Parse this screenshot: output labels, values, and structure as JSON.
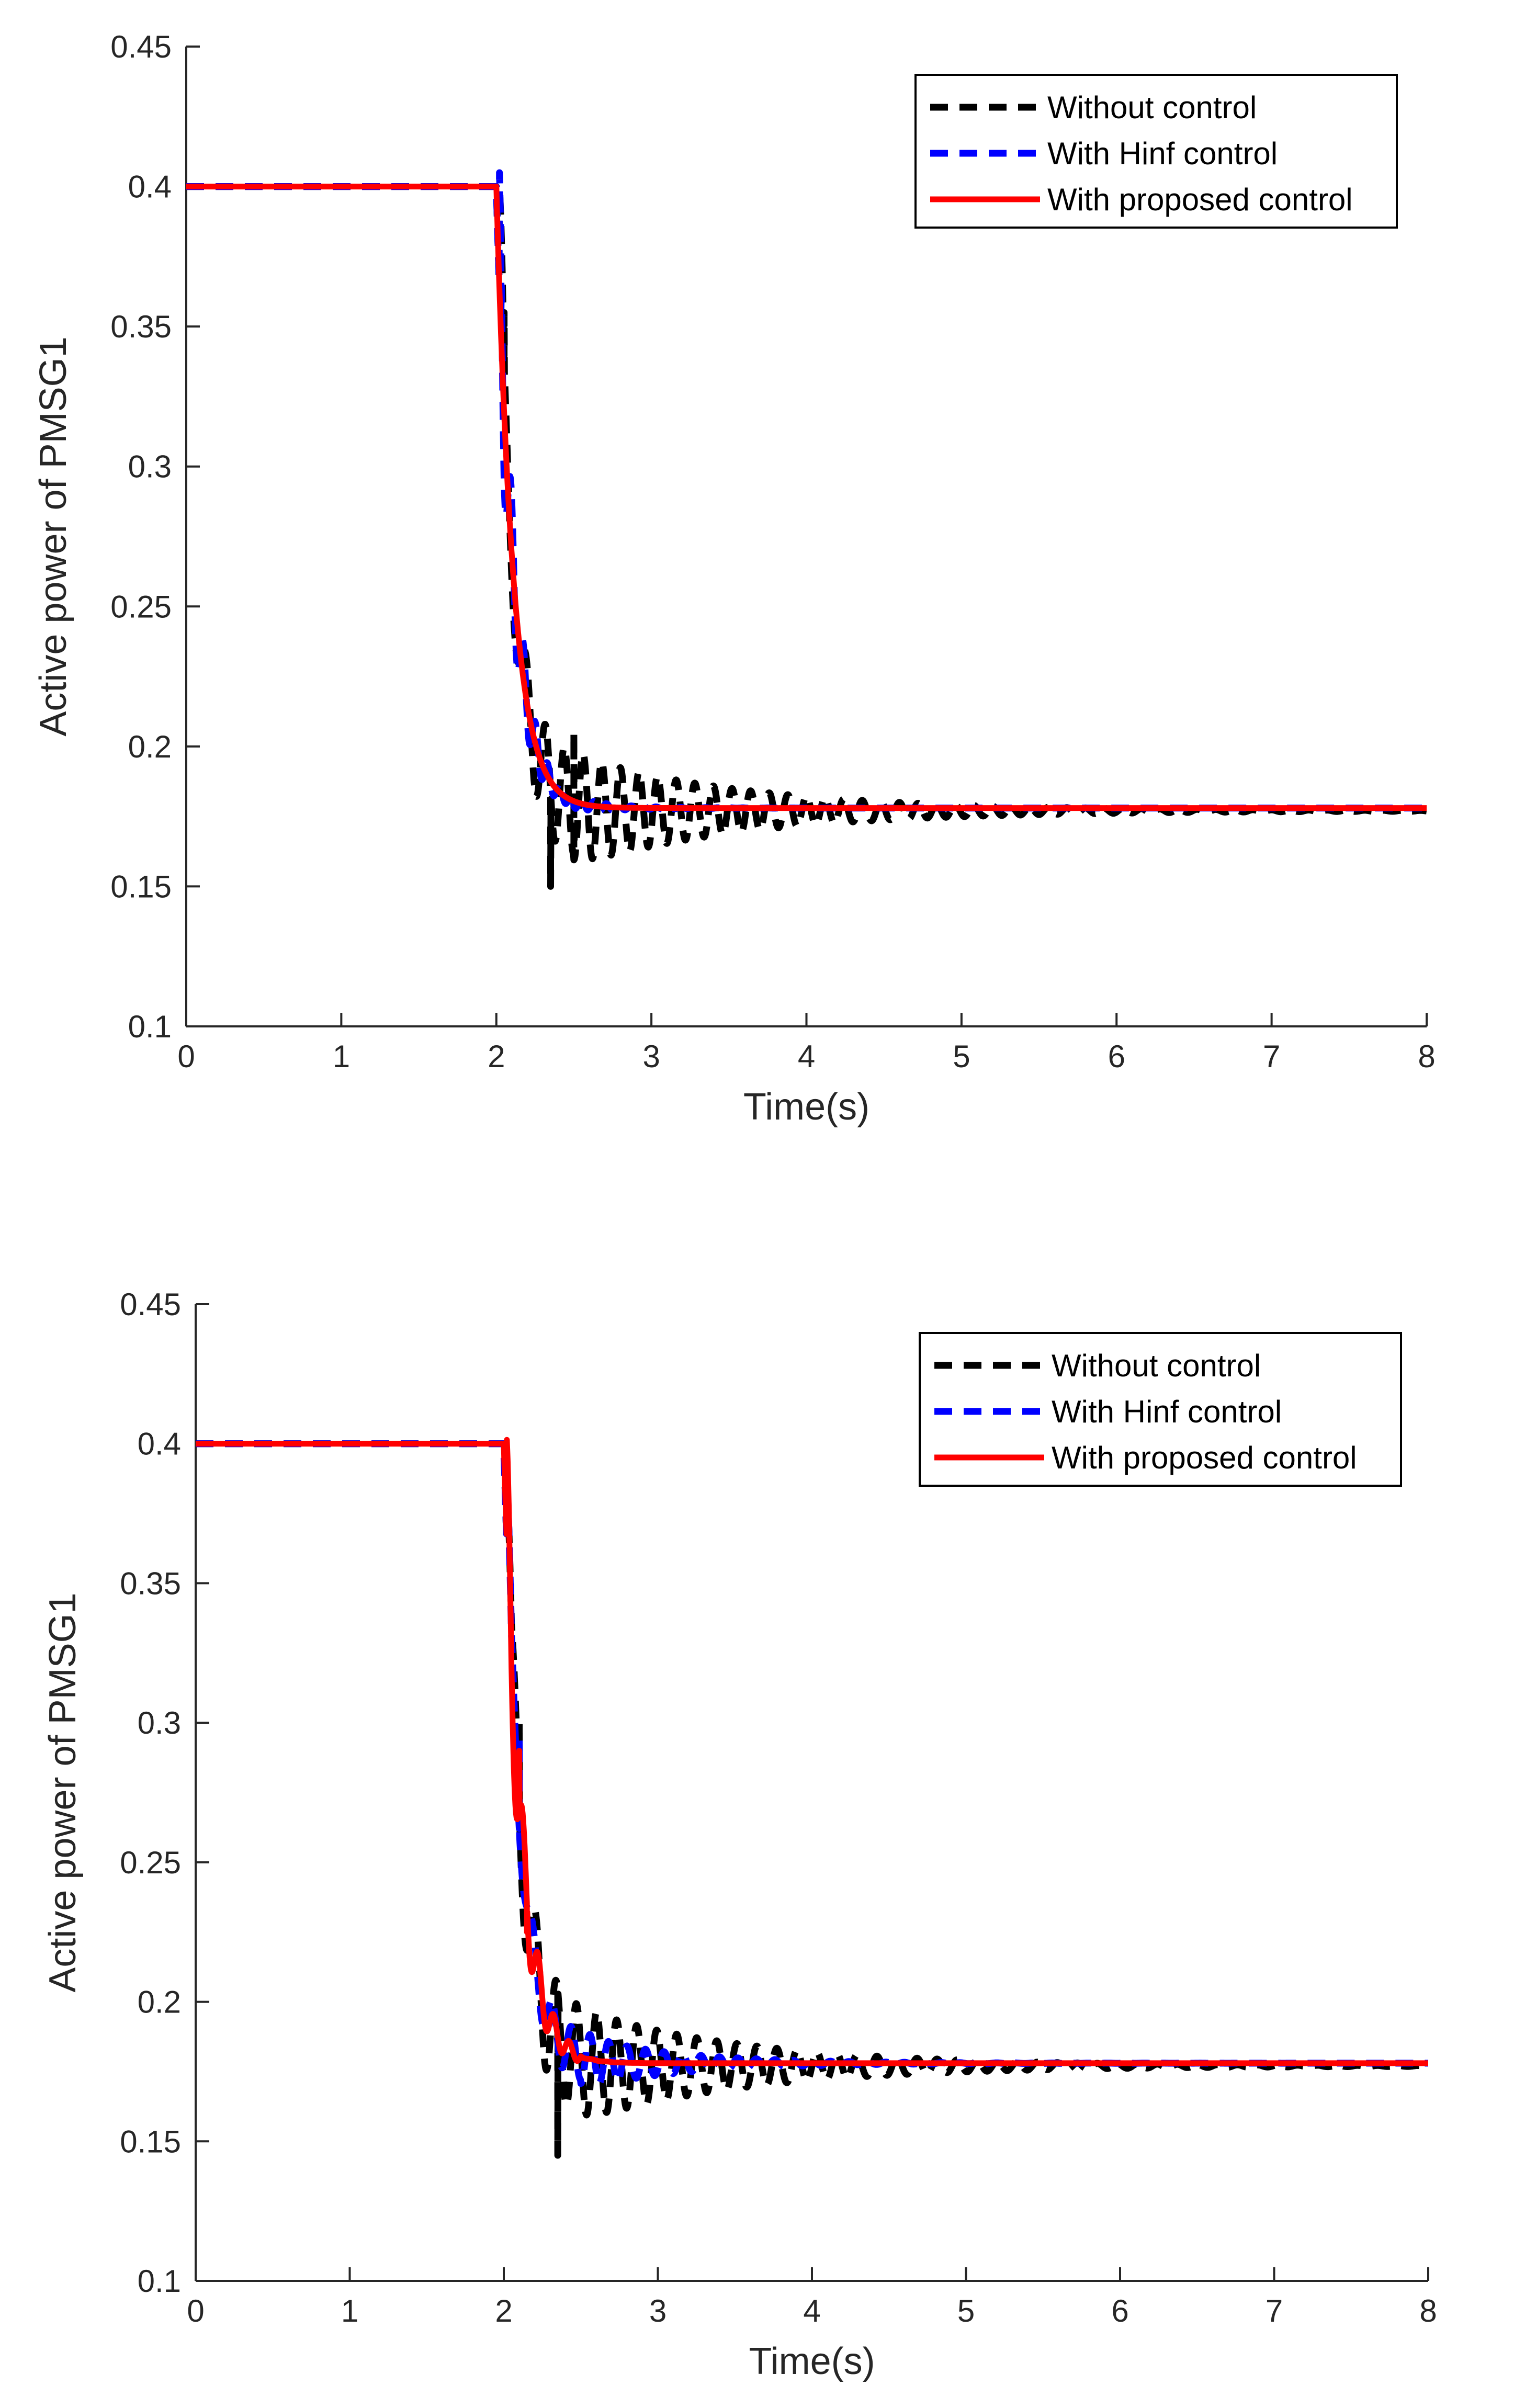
{
  "colors": {
    "without": "#000000",
    "hinf": "#0000ff",
    "proposed": "#ff0000",
    "axis": "#262626"
  },
  "chart_data": [
    {
      "type": "line",
      "title": "",
      "xlabel": "Time(s)",
      "ylabel": "Active power of PMSG1",
      "xlim": [
        0,
        8
      ],
      "ylim": [
        0.1,
        0.45
      ],
      "xticks": [
        0,
        1,
        2,
        3,
        4,
        5,
        6,
        7,
        8
      ],
      "xtick_labels": [
        "0",
        "1",
        "2",
        "3",
        "4",
        "5",
        "6",
        "7",
        "8"
      ],
      "yticks": [
        0.1,
        0.15,
        0.2,
        0.25,
        0.3,
        0.35,
        0.4,
        0.45
      ],
      "ytick_labels": [
        "0.1",
        "0.15",
        "0.2",
        "0.25",
        "0.3",
        "0.35",
        "0.4",
        "0.45"
      ],
      "legend_position": "top-right",
      "series": [
        {
          "name": "Without control",
          "style": "dashed",
          "color": "#000000",
          "pre_fault_value": 0.4,
          "fault_time": 2.0,
          "steady_state": 0.177,
          "first_dip": 0.26,
          "oscillation_amplitude": 0.03,
          "decay_rate": 0.9,
          "oscillation_period": 0.12,
          "extra_sample_points": [
            [
              2.05,
              0.355
            ],
            [
              2.35,
              0.15
            ],
            [
              2.5,
              0.205
            ]
          ]
        },
        {
          "name": "With Hinf control",
          "style": "dashed",
          "color": "#0000ff",
          "pre_fault_value": 0.4,
          "fault_time": 2.0,
          "steady_state": 0.178,
          "first_dip": 0.26,
          "oscillation_amplitude": 0.012,
          "decay_rate": 3.5,
          "oscillation_period": 0.08,
          "extra_sample_points": [
            [
              2.03,
              0.355
            ]
          ]
        },
        {
          "name": "With proposed control",
          "style": "solid",
          "color": "#ff0000",
          "pre_fault_value": 0.4,
          "fault_time": 2.0,
          "steady_state": 0.178,
          "first_dip": 0,
          "oscillation_amplitude": 0,
          "decay_rate": 11,
          "oscillation_period": 1,
          "extra_sample_points": []
        }
      ]
    },
    {
      "type": "line",
      "title": "",
      "xlabel": "Time(s)",
      "ylabel": "Active power of PMSG1",
      "xlim": [
        0,
        8
      ],
      "ylim": [
        0.1,
        0.45
      ],
      "xticks": [
        0,
        1,
        2,
        3,
        4,
        5,
        6,
        7,
        8
      ],
      "xtick_labels": [
        "0",
        "1",
        "2",
        "3",
        "4",
        "5",
        "6",
        "7",
        "8"
      ],
      "yticks": [
        0.1,
        0.15,
        0.2,
        0.25,
        0.3,
        0.35,
        0.4,
        0.45
      ],
      "ytick_labels": [
        "0.1",
        "0.15",
        "0.2",
        "0.25",
        "0.3",
        "0.35",
        "0.4",
        "0.45"
      ],
      "legend_position": "top-right",
      "series": [
        {
          "name": "Without control",
          "style": "dashed",
          "color": "#000000",
          "pre_fault_value": 0.4,
          "fault_time": 2.0,
          "steady_state": 0.177,
          "first_dip": 0.18,
          "oscillation_amplitude": 0.03,
          "decay_rate": 0.9,
          "oscillation_period": 0.13,
          "extra_sample_points": [
            [
              2.1,
              0.3
            ],
            [
              2.35,
              0.145
            ]
          ]
        },
        {
          "name": "With Hinf control",
          "style": "dashed",
          "color": "#0000ff",
          "pre_fault_value": 0.4,
          "fault_time": 2.0,
          "steady_state": 0.178,
          "first_dip": 0.18,
          "oscillation_amplitude": 0.02,
          "decay_rate": 1.6,
          "oscillation_period": 0.12,
          "extra_sample_points": [
            [
              2.1,
              0.295
            ]
          ]
        },
        {
          "name": "With proposed control",
          "style": "solid",
          "color": "#ff0000",
          "pre_fault_value": 0.4,
          "fault_time": 2.0,
          "steady_state": 0.178,
          "first_dip": 0.25,
          "oscillation_amplitude": 0.01,
          "decay_rate": 8,
          "oscillation_period": 0.1,
          "extra_sample_points": [
            [
              2.1,
              0.29
            ],
            [
              2.15,
              0.225
            ]
          ]
        }
      ]
    }
  ]
}
